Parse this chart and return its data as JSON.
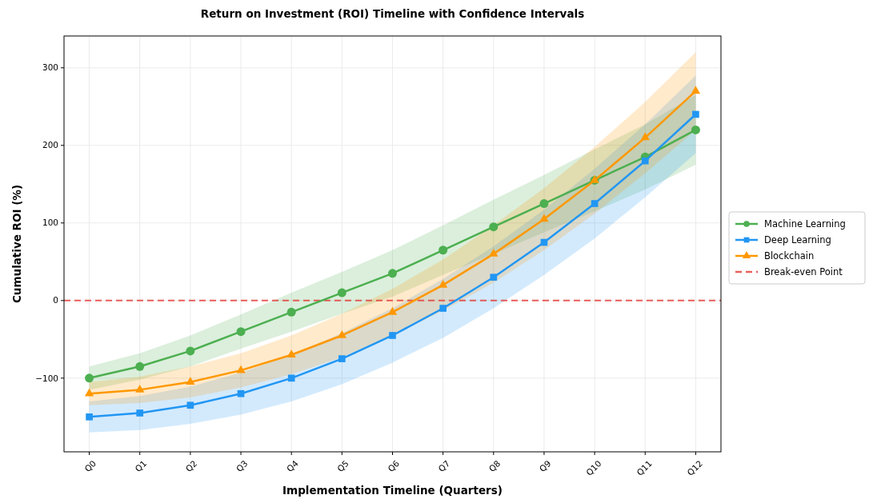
{
  "chart_data": {
    "type": "line",
    "title": "Return on Investment (ROI) Timeline with Confidence Intervals",
    "xlabel": "Implementation Timeline (Quarters)",
    "ylabel": "Cumulative ROI (%)",
    "categories": [
      "Q0",
      "Q1",
      "Q2",
      "Q3",
      "Q4",
      "Q5",
      "Q6",
      "Q7",
      "Q8",
      "Q9",
      "Q10",
      "Q11",
      "Q12"
    ],
    "series": [
      {
        "name": "Machine Learning",
        "color": "#4caf50",
        "marker": "circle",
        "values": [
          -100,
          -85,
          -65,
          -40,
          -15,
          10,
          35,
          65,
          95,
          125,
          155,
          185,
          220
        ],
        "lower": [
          -115,
          -102,
          -85,
          -62,
          -40,
          -17,
          5,
          33,
          60,
          88,
          115,
          143,
          175
        ],
        "upper": [
          -85,
          -68,
          -45,
          -18,
          10,
          37,
          65,
          97,
          130,
          162,
          195,
          227,
          265
        ]
      },
      {
        "name": "Deep Learning",
        "color": "#2196f3",
        "marker": "square",
        "values": [
          -150,
          -145,
          -135,
          -120,
          -100,
          -75,
          -45,
          -10,
          30,
          75,
          125,
          180,
          240
        ],
        "lower": [
          -170,
          -167,
          -159,
          -147,
          -130,
          -108,
          -80,
          -48,
          -10,
          33,
          80,
          133,
          190
        ],
        "upper": [
          -130,
          -123,
          -111,
          -93,
          -70,
          -42,
          -10,
          28,
          70,
          117,
          170,
          227,
          290
        ]
      },
      {
        "name": "Blockchain",
        "color": "#ff9800",
        "marker": "triangle",
        "values": [
          -120,
          -115,
          -105,
          -90,
          -70,
          -45,
          -15,
          20,
          60,
          105,
          155,
          210,
          270
        ],
        "lower": [
          -135,
          -132,
          -125,
          -112,
          -95,
          -73,
          -45,
          -13,
          23,
          65,
          112,
          164,
          220
        ],
        "upper": [
          -105,
          -98,
          -85,
          -68,
          -45,
          -17,
          15,
          53,
          97,
          145,
          198,
          256,
          320
        ]
      }
    ],
    "ref_lines": [
      {
        "axis": "y",
        "value": 0,
        "label": "Break-even Point",
        "color": "#e53935",
        "line_style": "dashed"
      }
    ],
    "ylim": [
      -195,
      341
    ],
    "yticks": [
      {
        "value": -100,
        "label": "−100"
      },
      0,
      100,
      200,
      300
    ],
    "grid": true,
    "legend": "right",
    "line_style": "solid"
  }
}
